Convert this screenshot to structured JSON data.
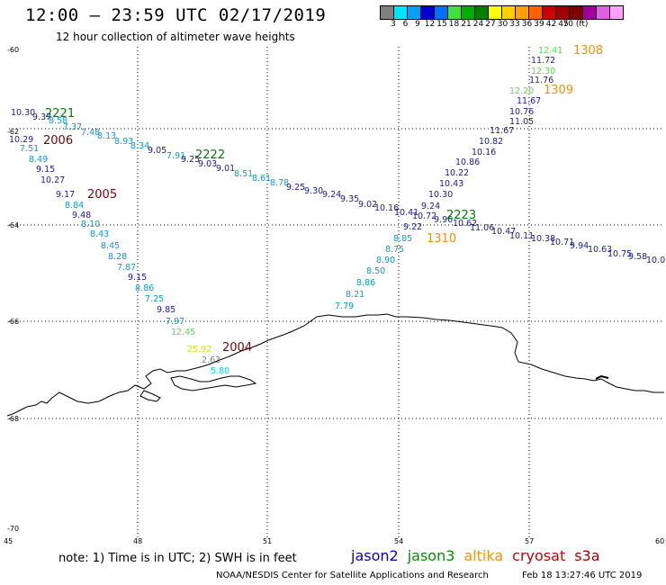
{
  "header": {
    "title": "12:00 – 23:59 UTC 02/17/2019",
    "subtitle": "12 hour collection of altimeter wave heights"
  },
  "legend": {
    "colors": [
      "#808080",
      "#00e5ff",
      "#00a0ff",
      "#0000d0",
      "#0070ff",
      "#40e040",
      "#00b000",
      "#008000",
      "#ffff00",
      "#ffd000",
      "#ffa000",
      "#ff6000",
      "#d00000",
      "#a00000",
      "#800000",
      "#a000a0",
      "#e060e0",
      "#ffa0ff",
      "#000000"
    ],
    "labels": [
      "3",
      "6",
      "9",
      "12",
      "15",
      "18",
      "21",
      "24",
      "27",
      "30",
      "33",
      "36",
      "39",
      "42",
      "45",
      "70 (ft)"
    ],
    "unit": "(ft)"
  },
  "map": {
    "lat_labels": [
      "-60",
      "-62",
      "-64",
      "-66",
      "-68",
      "-70"
    ],
    "lon_labels": [
      "45",
      "48",
      "51",
      "54",
      "57",
      "60"
    ]
  },
  "tracks": [
    {
      "id": "2221",
      "color": "#007a00",
      "label": "2221"
    },
    {
      "id": "2006",
      "color": "#800000",
      "label": "2006"
    },
    {
      "id": "2005",
      "color": "#800000",
      "label": "2005"
    },
    {
      "id": "2222",
      "color": "#007a00",
      "label": "2222"
    },
    {
      "id": "2223",
      "color": "#007a00",
      "label": "2223"
    },
    {
      "id": "1310",
      "color": "#ff8c00",
      "label": "1310"
    },
    {
      "id": "1309",
      "color": "#ff8c00",
      "label": "1309"
    },
    {
      "id": "1308",
      "color": "#ff8c00",
      "label": "1308"
    },
    {
      "id": "2004",
      "color": "#800000",
      "label": "2004"
    }
  ],
  "observations": [
    {
      "v": "10.30",
      "c": "#1a1aa0"
    },
    {
      "v": "9.37",
      "c": "#1a1aa0"
    },
    {
      "v": "8.58",
      "c": "#00a0e0"
    },
    {
      "v": "7.37",
      "c": "#00a0e0"
    },
    {
      "v": "7.48",
      "c": "#00a0e0"
    },
    {
      "v": "8.13",
      "c": "#00a0e0"
    },
    {
      "v": "8.93",
      "c": "#00a0e0"
    },
    {
      "v": "8.34",
      "c": "#00a0e0"
    },
    {
      "v": "9.05",
      "c": "#1a1aa0"
    },
    {
      "v": "7.91",
      "c": "#00a0e0"
    },
    {
      "v": "9.25",
      "c": "#1a1aa0"
    },
    {
      "v": "9.03",
      "c": "#1a1aa0"
    },
    {
      "v": "9.01",
      "c": "#1a1aa0"
    },
    {
      "v": "8.51",
      "c": "#00a0e0"
    },
    {
      "v": "8.61",
      "c": "#00a0e0"
    },
    {
      "v": "8.78",
      "c": "#00a0e0"
    },
    {
      "v": "9.25",
      "c": "#1a1aa0"
    },
    {
      "v": "9.30",
      "c": "#1a1aa0"
    },
    {
      "v": "9.24",
      "c": "#1a1aa0"
    },
    {
      "v": "9.35",
      "c": "#1a1aa0"
    },
    {
      "v": "9.02",
      "c": "#1a1aa0"
    },
    {
      "v": "10.16",
      "c": "#1a1aa0"
    },
    {
      "v": "10.41",
      "c": "#1a1aa0"
    },
    {
      "v": "10.72",
      "c": "#1a1aa0"
    },
    {
      "v": "9.96",
      "c": "#1a1aa0"
    },
    {
      "v": "10.62",
      "c": "#1a1aa0"
    },
    {
      "v": "11.06",
      "c": "#1a1aa0"
    },
    {
      "v": "10.47",
      "c": "#1a1aa0"
    },
    {
      "v": "10.11",
      "c": "#1a1aa0"
    },
    {
      "v": "10.38",
      "c": "#1a1aa0"
    },
    {
      "v": "10.71",
      "c": "#1a1aa0"
    },
    {
      "v": "9.94",
      "c": "#1a1aa0"
    },
    {
      "v": "10.63",
      "c": "#1a1aa0"
    },
    {
      "v": "10.75",
      "c": "#1a1aa0"
    },
    {
      "v": "9.58",
      "c": "#1a1aa0"
    },
    {
      "v": "10.0",
      "c": "#1a1aa0"
    },
    {
      "v": "10.29",
      "c": "#1a1aa0"
    },
    {
      "v": "7.51",
      "c": "#00a0e0"
    },
    {
      "v": "8.49",
      "c": "#00a0e0"
    },
    {
      "v": "9.15",
      "c": "#1a1aa0"
    },
    {
      "v": "10.27",
      "c": "#1a1aa0"
    },
    {
      "v": "9.17",
      "c": "#1a1aa0"
    },
    {
      "v": "8.84",
      "c": "#00a0e0"
    },
    {
      "v": "9.48",
      "c": "#1a1aa0"
    },
    {
      "v": "8.10",
      "c": "#00a0e0"
    },
    {
      "v": "8.43",
      "c": "#00a0e0"
    },
    {
      "v": "8.45",
      "c": "#00a0e0"
    },
    {
      "v": "8.28",
      "c": "#00a0e0"
    },
    {
      "v": "7.87",
      "c": "#00a0e0"
    },
    {
      "v": "9.15",
      "c": "#1a1aa0"
    },
    {
      "v": "8.86",
      "c": "#00a0e0"
    },
    {
      "v": "7.25",
      "c": "#00a0e0"
    },
    {
      "v": "9.85",
      "c": "#1a1aa0"
    },
    {
      "v": "7.97",
      "c": "#00a0e0"
    },
    {
      "v": "12.45",
      "c": "#50e050"
    },
    {
      "v": "25.92",
      "c": "#e0e000"
    },
    {
      "v": "2.63",
      "c": "#808080"
    },
    {
      "v": "5.80",
      "c": "#00d8ff"
    },
    {
      "v": "12.41",
      "c": "#50e050"
    },
    {
      "v": "11.72",
      "c": "#1a1aa0"
    },
    {
      "v": "12.30",
      "c": "#50e050"
    },
    {
      "v": "11.76",
      "c": "#1a1aa0"
    },
    {
      "v": "12.20",
      "c": "#50e050"
    },
    {
      "v": "11.67",
      "c": "#1a1aa0"
    },
    {
      "v": "10.76",
      "c": "#1a1aa0"
    },
    {
      "v": "11.05",
      "c": "#1a1aa0"
    },
    {
      "v": "11.67",
      "c": "#1a1aa0"
    },
    {
      "v": "10.82",
      "c": "#1a1aa0"
    },
    {
      "v": "10.16",
      "c": "#1a1aa0"
    },
    {
      "v": "10.86",
      "c": "#1a1aa0"
    },
    {
      "v": "10.22",
      "c": "#1a1aa0"
    },
    {
      "v": "10.43",
      "c": "#1a1aa0"
    },
    {
      "v": "10.30",
      "c": "#1a1aa0"
    },
    {
      "v": "9.24",
      "c": "#1a1aa0"
    },
    {
      "v": "9.22",
      "c": "#1a1aa0"
    },
    {
      "v": "8.85",
      "c": "#00a0e0"
    },
    {
      "v": "8.75",
      "c": "#00a0e0"
    },
    {
      "v": "8.90",
      "c": "#00a0e0"
    },
    {
      "v": "8.50",
      "c": "#00a0e0"
    },
    {
      "v": "8.86",
      "c": "#00a0e0"
    },
    {
      "v": "8.21",
      "c": "#00a0e0"
    },
    {
      "v": "7.79",
      "c": "#00a0e0"
    }
  ],
  "footer": {
    "note": "note:  1) Time is in UTC;  2) SWH is in feet",
    "satellites": [
      {
        "name": "jason2",
        "color": "#0000cc"
      },
      {
        "name": "jason3",
        "color": "#009000"
      },
      {
        "name": "altika",
        "color": "#ff9000"
      },
      {
        "name": "cryosat",
        "color": "#cc0000"
      },
      {
        "name": "s3a",
        "color": "#aa0000"
      }
    ],
    "credit": "NOAA/NESDIS Center for Satellite Applications and Research",
    "timestamp": "Feb 18 13:27:46 UTC 2019"
  }
}
